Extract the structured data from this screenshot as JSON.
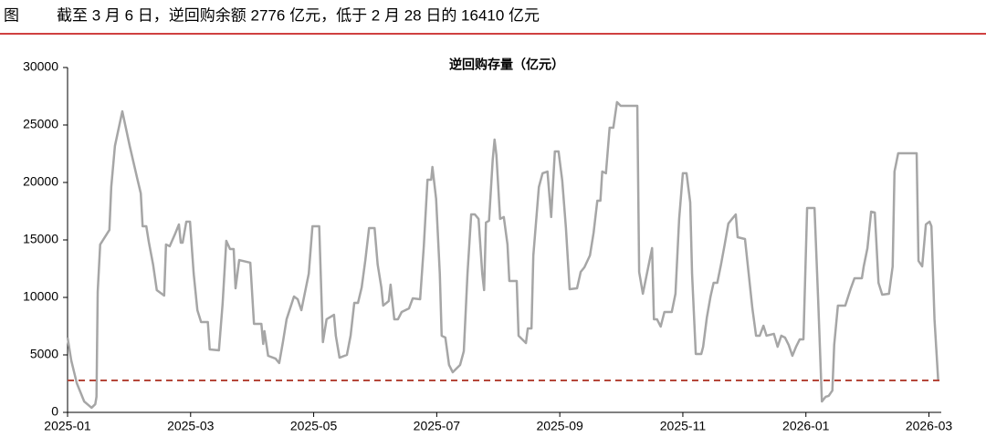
{
  "header": {
    "label": "图",
    "title": "截至 3 月 6 日，逆回购余额 2776 亿元，低于 2 月 28 日的 16410 亿元"
  },
  "chart_data": {
    "type": "line",
    "title": "逆回购存量（亿元）",
    "x": [
      0,
      0.06,
      0.15,
      0.27,
      0.39,
      0.45,
      0.47,
      0.49,
      0.53,
      0.68,
      0.71,
      0.77,
      0.89,
      1.01,
      1.13,
      1.19,
      1.22,
      1.28,
      1.32,
      1.39,
      1.45,
      1.57,
      1.6,
      1.66,
      1.75,
      1.81,
      1.84,
      1.87,
      1.93,
      1.99,
      2.05,
      2.11,
      2.17,
      2.28,
      2.31,
      2.46,
      2.52,
      2.58,
      2.64,
      2.7,
      2.73,
      2.79,
      2.97,
      3.03,
      3.15,
      3.18,
      3.2,
      3.26,
      3.38,
      3.44,
      3.5,
      3.56,
      3.68,
      3.74,
      3.8,
      3.92,
      3.98,
      4.09,
      4.15,
      4.21,
      4.33,
      4.36,
      4.42,
      4.54,
      4.6,
      4.66,
      4.72,
      4.78,
      4.84,
      4.9,
      4.99,
      5.04,
      5.1,
      5.13,
      5.22,
      5.25,
      5.31,
      5.37,
      5.43,
      5.55,
      5.61,
      5.73,
      5.79,
      5.85,
      5.91,
      5.93,
      5.99,
      6.05,
      6.08,
      6.14,
      6.2,
      6.26,
      6.38,
      6.44,
      6.5,
      6.56,
      6.62,
      6.68,
      6.74,
      6.77,
      6.8,
      6.85,
      6.91,
      6.94,
      6.97,
      7.03,
      7.09,
      7.15,
      7.18,
      7.3,
      7.33,
      7.45,
      7.48,
      7.54,
      7.57,
      7.66,
      7.72,
      7.8,
      7.86,
      7.92,
      7.98,
      8.04,
      8.1,
      8.16,
      8.28,
      8.34,
      8.4,
      8.49,
      8.55,
      8.61,
      8.66,
      8.69,
      8.75,
      8.81,
      8.87,
      8.93,
      8.99,
      9.26,
      9.29,
      9.35,
      9.44,
      9.5,
      9.53,
      9.58,
      9.64,
      9.7,
      9.82,
      9.88,
      9.94,
      10.0,
      10.06,
      10.12,
      10.15,
      10.21,
      10.3,
      10.33,
      10.39,
      10.45,
      10.5,
      10.56,
      10.62,
      10.68,
      10.74,
      10.8,
      10.86,
      10.89,
      11.01,
      11.07,
      11.13,
      11.19,
      11.25,
      11.31,
      11.36,
      11.48,
      11.54,
      11.6,
      11.66,
      11.72,
      11.78,
      11.84,
      11.9,
      11.96,
      12.02,
      12.14,
      12.2,
      12.26,
      12.32,
      12.37,
      12.43,
      12.46,
      12.52,
      12.64,
      12.73,
      12.79,
      12.91,
      12.94,
      13.0,
      13.06,
      13.12,
      13.18,
      13.24,
      13.35,
      13.41,
      13.44,
      13.5,
      13.8,
      13.83,
      13.89,
      13.95,
      14.01,
      14.04,
      14.09,
      14.15
    ],
    "values": [
      6510,
      4520,
      2540,
      950,
      400,
      710,
      1350,
      10480,
      14600,
      15870,
      19600,
      23180,
      26190,
      23180,
      20400,
      19050,
      16190,
      16190,
      14840,
      12860,
      10640,
      10160,
      14600,
      14450,
      15560,
      16350,
      14760,
      14760,
      16590,
      16590,
      12060,
      8890,
      7860,
      7860,
      5480,
      5400,
      9450,
      14920,
      14210,
      14210,
      10790,
      13250,
      13020,
      7700,
      7700,
      5950,
      7060,
      4920,
      4680,
      4290,
      6110,
      8100,
      10080,
      9840,
      8890,
      12060,
      16190,
      16190,
      6110,
      8100,
      8490,
      6670,
      4760,
      5000,
      6670,
      9520,
      9520,
      10870,
      13250,
      16030,
      16030,
      12860,
      10870,
      9290,
      9680,
      11110,
      8100,
      8100,
      8730,
      9050,
      9920,
      9840,
      14450,
      20240,
      20240,
      21350,
      18570,
      12060,
      6670,
      6510,
      4130,
      3490,
      4130,
      5320,
      12060,
      17220,
      17220,
      16830,
      12060,
      10640,
      16510,
      16670,
      21990,
      23730,
      22380,
      16830,
      16990,
      14600,
      11430,
      11430,
      6670,
      6030,
      7300,
      7300,
      13650,
      19600,
      20800,
      20950,
      16990,
      22700,
      22700,
      20160,
      16030,
      10710,
      10790,
      12220,
      12620,
      13650,
      15640,
      18410,
      18410,
      20950,
      20800,
      24760,
      24760,
      26990,
      26670,
      26670,
      12220,
      10320,
      12700,
      14290,
      8100,
      8100,
      7460,
      8730,
      8730,
      10320,
      16830,
      20800,
      20800,
      18260,
      12060,
      5080,
      5080,
      5710,
      8250,
      10080,
      11270,
      11270,
      12860,
      14600,
      16430,
      16830,
      17220,
      15240,
      15080,
      12060,
      9050,
      6670,
      6670,
      7540,
      6670,
      6830,
      5710,
      6670,
      6510,
      5870,
      4920,
      5710,
      6350,
      6350,
      17780,
      17780,
      9680,
      950,
      1350,
      1430,
      1900,
      5870,
      9290,
      9290,
      10790,
      11670,
      11670,
      12700,
      14290,
      17460,
      17380,
      11270,
      10240,
      10320,
      12700,
      20950,
      22540,
      22540,
      13180,
      12700,
      16350,
      16590,
      16190,
      8100,
      2776
    ],
    "color": "#a6a6a6",
    "reference_line": {
      "value": 2776,
      "color": "#b5473a",
      "style": "dashed"
    },
    "xlim": [
      0,
      14.2
    ],
    "xticks": [
      {
        "value": 0,
        "label": "2025-01"
      },
      {
        "value": 2,
        "label": "2025-03"
      },
      {
        "value": 4,
        "label": "2025-05"
      },
      {
        "value": 6,
        "label": "2025-07"
      },
      {
        "value": 8,
        "label": "2025-09"
      },
      {
        "value": 10,
        "label": "2025-11"
      },
      {
        "value": 12,
        "label": "2026-01"
      },
      {
        "value": 14,
        "label": "2026-03"
      }
    ],
    "ylim": [
      0,
      30000
    ],
    "yticks": [
      0,
      5000,
      10000,
      15000,
      20000,
      25000,
      30000
    ],
    "grid": false
  }
}
